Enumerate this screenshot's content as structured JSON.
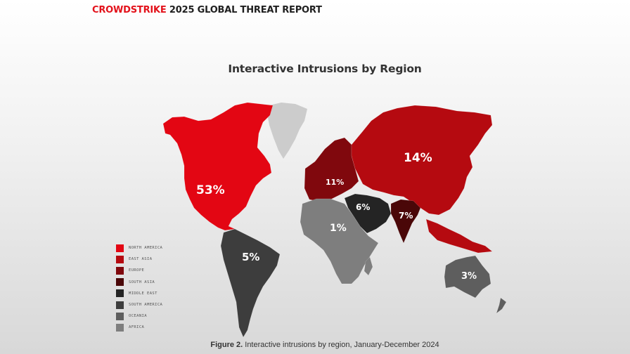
{
  "header": {
    "brand": "CROWDSTRIKE",
    "rest": " 2025 GLOBAL THREAT REPORT"
  },
  "title": "Interactive Intrusions by Region",
  "caption": {
    "label": "Figure 2.",
    "text": " Interactive intrusions by region, January-December 2024"
  },
  "colors": {
    "brand": "#e3121b",
    "greenland": "#cccccc"
  },
  "legend": [
    {
      "label": "North America",
      "color": "#e30613"
    },
    {
      "label": "East Asia",
      "color": "#b50a10"
    },
    {
      "label": "Europe",
      "color": "#80080d"
    },
    {
      "label": "South Asia",
      "color": "#4a0708"
    },
    {
      "label": "Middle East",
      "color": "#242424"
    },
    {
      "label": "South America",
      "color": "#3d3d3d"
    },
    {
      "label": "Oceania",
      "color": "#5e5e5e"
    },
    {
      "label": "Africa",
      "color": "#7e7e7e"
    }
  ],
  "regions": {
    "north_america": {
      "label": "53%",
      "value": 53,
      "color": "#e30613"
    },
    "east_asia": {
      "label": "14%",
      "value": 14,
      "color": "#b50a10"
    },
    "europe": {
      "label": "11%",
      "value": 11,
      "color": "#80080d"
    },
    "south_asia": {
      "label": "7%",
      "value": 7,
      "color": "#4a0708"
    },
    "middle_east": {
      "label": "6%",
      "value": 6,
      "color": "#242424"
    },
    "south_america": {
      "label": "5%",
      "value": 5,
      "color": "#3d3d3d"
    },
    "oceania": {
      "label": "3%",
      "value": 3,
      "color": "#5e5e5e"
    },
    "africa": {
      "label": "1%",
      "value": 1,
      "color": "#7e7e7e"
    }
  }
}
